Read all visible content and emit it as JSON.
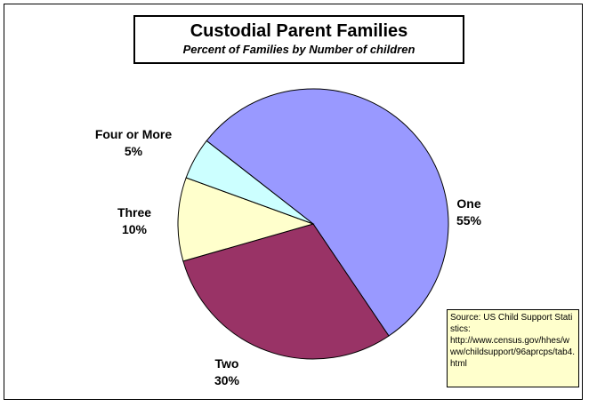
{
  "chart_data": {
    "type": "pie",
    "title": "Custodial Parent Families",
    "subtitle": "Percent of Families by Number of children",
    "slices": [
      {
        "label": "One",
        "value": 55,
        "value_label": "55%",
        "color": "#9999ff"
      },
      {
        "label": "Two",
        "value": 30,
        "value_label": "30%",
        "color": "#993366"
      },
      {
        "label": "Three",
        "value": 10,
        "value_label": "10%",
        "color": "#ffffcc"
      },
      {
        "label": "Four or More",
        "value": 5,
        "value_label": "5%",
        "color": "#ccffff"
      }
    ]
  },
  "source_note": {
    "line1": "Source:  US Child Support Statistics:",
    "line2": "http://www.census.gov/hhes/www/childsupport/96aprcps/tab4.html"
  }
}
